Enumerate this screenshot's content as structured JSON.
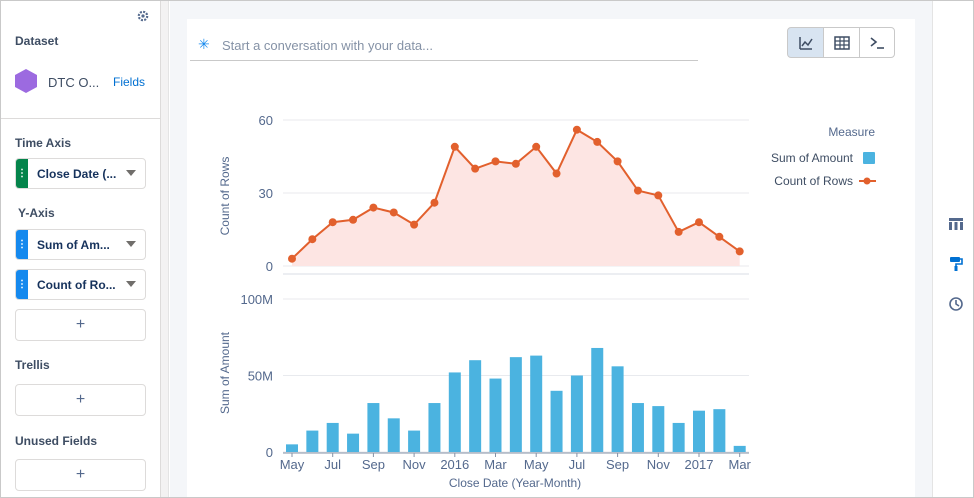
{
  "left_panel": {
    "dataset_label": "Dataset",
    "dataset_name": "DTC O...",
    "fields_link": "Fields",
    "time_axis_label": "Time Axis",
    "time_axis_field": "Close Date (...",
    "y_axis_label": "Y-Axis",
    "y_axis_fields": [
      "Sum of Am...",
      "Count of Ro..."
    ],
    "add_symbol": "+",
    "trellis_label": "Trellis",
    "unused_fields_label": "Unused Fields"
  },
  "search": {
    "placeholder": "Start a conversation with your data..."
  },
  "view_toggle": {
    "options": [
      "chart-view-icon",
      "table-view-icon",
      "query-view-icon"
    ],
    "active": "chart-view-icon"
  },
  "right_rail": {
    "icons": [
      "trellis-icon",
      "format-icon",
      "history-icon"
    ]
  },
  "colors": {
    "amount_bar": "#4bb3e0",
    "count_line": "#e2602d",
    "count_area": "#fde5e3",
    "accent": "#0070d2"
  },
  "chart_data": [
    {
      "type": "line",
      "ylabel": "Count of Rows",
      "ylim": [
        0,
        60
      ],
      "yticks": [
        "0",
        "30",
        "60"
      ],
      "series": [
        {
          "name": "Count of Rows",
          "values": [
            3,
            11,
            18,
            19,
            24,
            22,
            17,
            26,
            49,
            40,
            43,
            42,
            49,
            38,
            56,
            51,
            43,
            31,
            29,
            14,
            18,
            12,
            6
          ]
        }
      ],
      "area_fill": true
    },
    {
      "type": "bar",
      "ylabel": "Sum of Amount",
      "ylim": [
        0,
        100
      ],
      "yticks": [
        "0",
        "50M",
        "100M"
      ],
      "xlabel": "Close Date (Year-Month)",
      "xticks": [
        "May",
        "Jul",
        "Sep",
        "Nov",
        "2016",
        "Mar",
        "May",
        "Jul",
        "Sep",
        "Nov",
        "2017",
        "Mar"
      ],
      "series": [
        {
          "name": "Sum of Amount",
          "values": [
            5,
            14,
            19,
            12,
            32,
            22,
            14,
            32,
            52,
            60,
            48,
            62,
            63,
            40,
            50,
            68,
            56,
            32,
            30,
            19,
            27,
            28,
            4
          ]
        }
      ]
    }
  ],
  "legend": {
    "title": "Measure",
    "items": [
      "Sum of Amount",
      "Count of Rows"
    ]
  }
}
